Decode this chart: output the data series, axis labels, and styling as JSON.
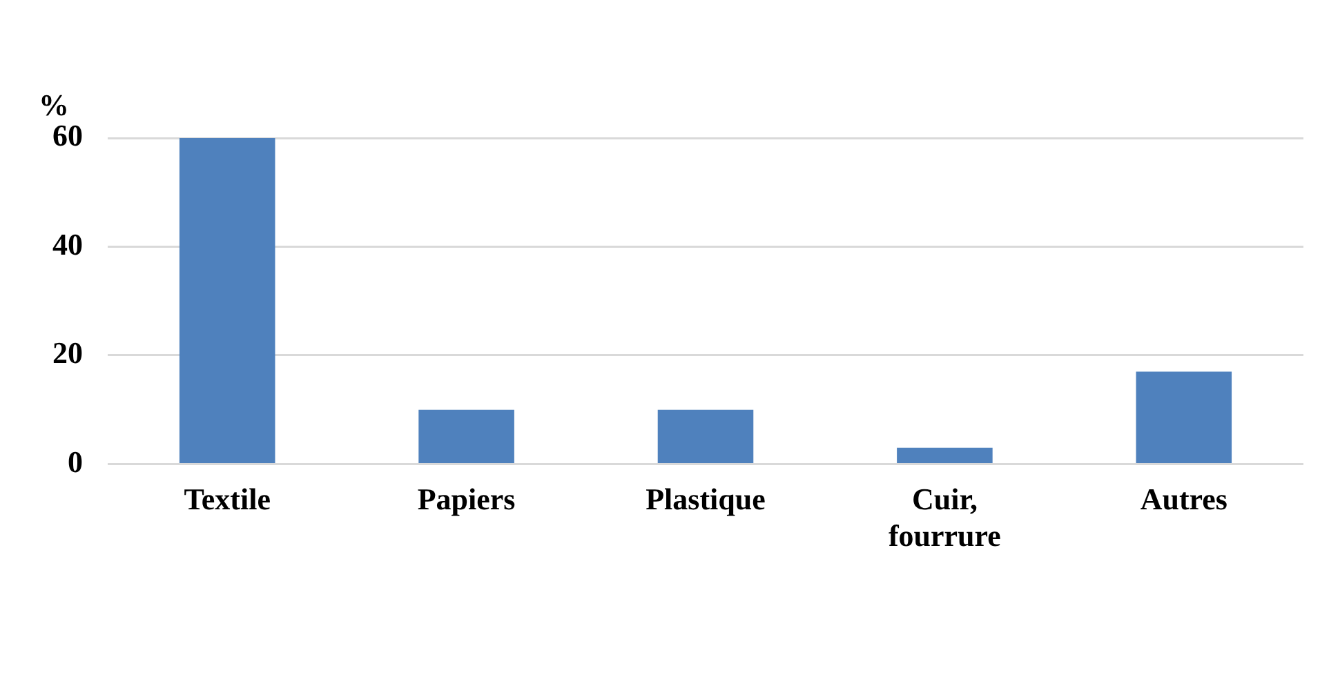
{
  "chart_data": {
    "type": "bar",
    "ylabel": "%",
    "categories": [
      "Textile",
      "Papiers",
      "Plastique",
      "Cuir, fourrure",
      "Autres"
    ],
    "values": [
      60,
      10,
      10,
      3,
      17
    ],
    "color": "#4f81bd",
    "ylim": [
      0,
      60
    ],
    "yticks": [
      0,
      20,
      40,
      60
    ],
    "grid": "y",
    "legend": false
  }
}
